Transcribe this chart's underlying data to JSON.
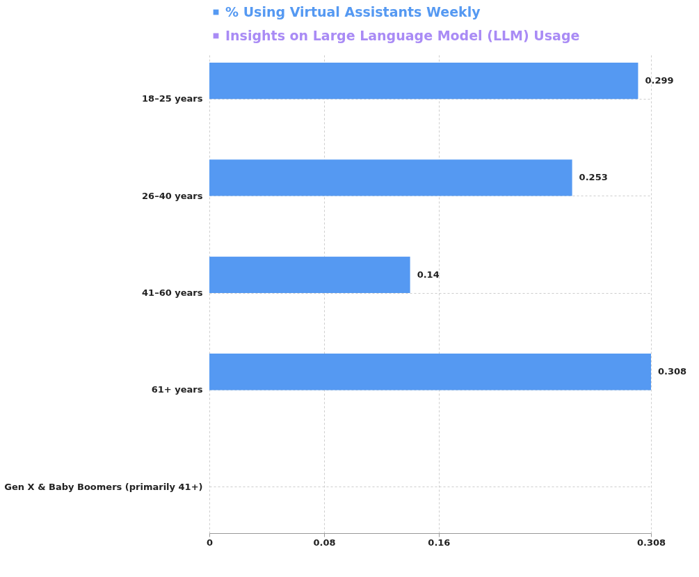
{
  "chart_data": {
    "type": "bar",
    "orientation": "horizontal",
    "categories": [
      "18–25 years",
      "26–40 years",
      "41–60 years",
      "61+ years",
      "Gen X & Baby Boomers (primarily 41+)"
    ],
    "series": [
      {
        "name": "% Using Virtual Assistants Weekly",
        "color": "#5599f2",
        "values": [
          0.299,
          0.253,
          0.14,
          0.308,
          null
        ]
      },
      {
        "name": "Insights on Large Language Model (LLM) Usage",
        "color": "#a98bf5",
        "values": [
          null,
          null,
          null,
          null,
          null
        ]
      }
    ],
    "xlim": [
      0,
      0.308
    ],
    "xticks": [
      0,
      0.08,
      0.16,
      0.308
    ],
    "grid": true,
    "legend": "top",
    "data_labels": true
  }
}
